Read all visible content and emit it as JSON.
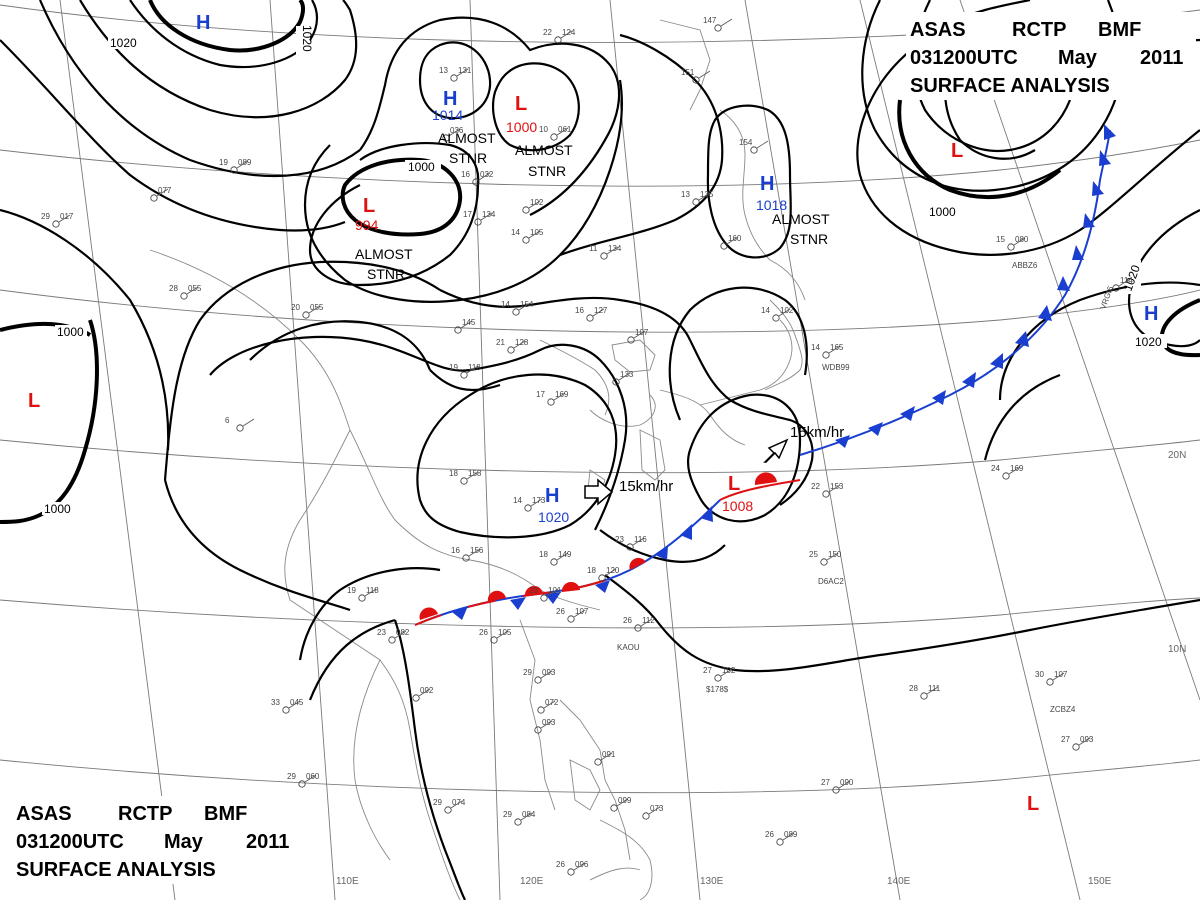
{
  "title_top": {
    "line1": [
      "ASAS",
      "RCTP",
      "BMF"
    ],
    "line2": [
      "031200UTC",
      "May",
      "2011"
    ],
    "line3": "SURFACE  ANALYSIS"
  },
  "title_bottom": {
    "line1": [
      "ASAS",
      "RCTP",
      "BMF"
    ],
    "line2": [
      "031200UTC",
      "May",
      "2011"
    ],
    "line3": "SURFACE  ANALYSIS"
  },
  "longitude_labels": [
    "110E",
    "120E",
    "130E",
    "140E",
    "150E"
  ],
  "latitude_labels": [
    "20N",
    "10N"
  ],
  "isobar_labels": [
    "1020",
    "1020",
    "1000",
    "1000",
    "1000",
    "1020",
    "1020",
    "1000"
  ],
  "pressure_centers": [
    {
      "type": "H",
      "value": "1014"
    },
    {
      "type": "L",
      "value": "1000"
    },
    {
      "type": "L",
      "value": "994"
    },
    {
      "type": "H",
      "value": "1018"
    },
    {
      "type": "H",
      "value": "1020"
    },
    {
      "type": "L",
      "value": "1008"
    },
    {
      "type": "H",
      "value": ""
    },
    {
      "type": "H",
      "value": ""
    },
    {
      "type": "L",
      "value": ""
    },
    {
      "type": "L",
      "value": ""
    },
    {
      "type": "L",
      "value": ""
    }
  ],
  "annotations": {
    "almost_stnr": [
      "ALMOST",
      "STNR"
    ],
    "speed_h": "15km/hr",
    "speed_l": "15km/hr"
  },
  "ship_ids": [
    "WDB99",
    "ABBZ6",
    "VRGI6",
    "D6AC2",
    "KAOU",
    "$178$",
    "ZCBZ4"
  ],
  "stations": [
    [
      "22",
      "124"
    ],
    [
      "147",
      ""
    ],
    [
      "151",
      ""
    ],
    [
      "13",
      "131"
    ],
    [
      "",
      "036"
    ],
    [
      "10",
      "061"
    ],
    [
      "19",
      "089"
    ],
    [
      "",
      "077"
    ],
    [
      "16",
      "032"
    ],
    [
      "17",
      "134"
    ],
    [
      "13",
      "135"
    ],
    [
      "",
      "160"
    ],
    [
      "154",
      ""
    ],
    [
      "",
      "102"
    ],
    [
      "29",
      "017"
    ],
    [
      "28",
      "055"
    ],
    [
      "20",
      "055"
    ],
    [
      "14",
      "154"
    ],
    [
      "16",
      "127"
    ],
    [
      "11",
      "134"
    ],
    [
      "14",
      "105"
    ],
    [
      "",
      "145"
    ],
    [
      "19",
      "118"
    ],
    [
      "21",
      "128"
    ],
    [
      "",
      "107"
    ],
    [
      "",
      "133"
    ],
    [
      "14",
      "165"
    ],
    [
      "6",
      ""
    ],
    [
      "17",
      "169"
    ],
    [
      "14",
      "173"
    ],
    [
      "18",
      "158"
    ],
    [
      "16",
      "156"
    ],
    [
      "18",
      "149"
    ],
    [
      "23",
      "116"
    ],
    [
      "18",
      "120"
    ],
    [
      "23",
      "101"
    ],
    [
      "26",
      "105"
    ],
    [
      "26",
      "107"
    ],
    [
      "26",
      "112"
    ],
    [
      "19",
      "118"
    ],
    [
      "23",
      "082"
    ],
    [
      "33",
      "045"
    ],
    [
      "",
      "092"
    ],
    [
      "22",
      "153"
    ],
    [
      "25",
      "150"
    ],
    [
      "27",
      "102"
    ],
    [
      "28",
      "111"
    ],
    [
      "24",
      "169"
    ],
    [
      "29",
      "093"
    ],
    [
      "",
      "072"
    ],
    [
      "",
      "093"
    ],
    [
      "29",
      "060"
    ],
    [
      "29",
      "074"
    ],
    [
      "29",
      "084"
    ],
    [
      "",
      "091"
    ],
    [
      "",
      "099"
    ],
    [
      "",
      "073"
    ],
    [
      "27",
      "090"
    ],
    [
      "26",
      "089"
    ],
    [
      "26",
      "096"
    ],
    [
      "30",
      "107"
    ],
    [
      "27",
      "093"
    ],
    [
      "15",
      "080"
    ],
    [
      "",
      "114"
    ],
    [
      "14",
      "102"
    ]
  ],
  "colors": {
    "high_center": "#1a3fd0",
    "low_center": "#e01010",
    "cold_front": "#1a3fd0",
    "warm_front": "#e01010",
    "isobar": "#000000",
    "grid": "#7a7a7a"
  }
}
